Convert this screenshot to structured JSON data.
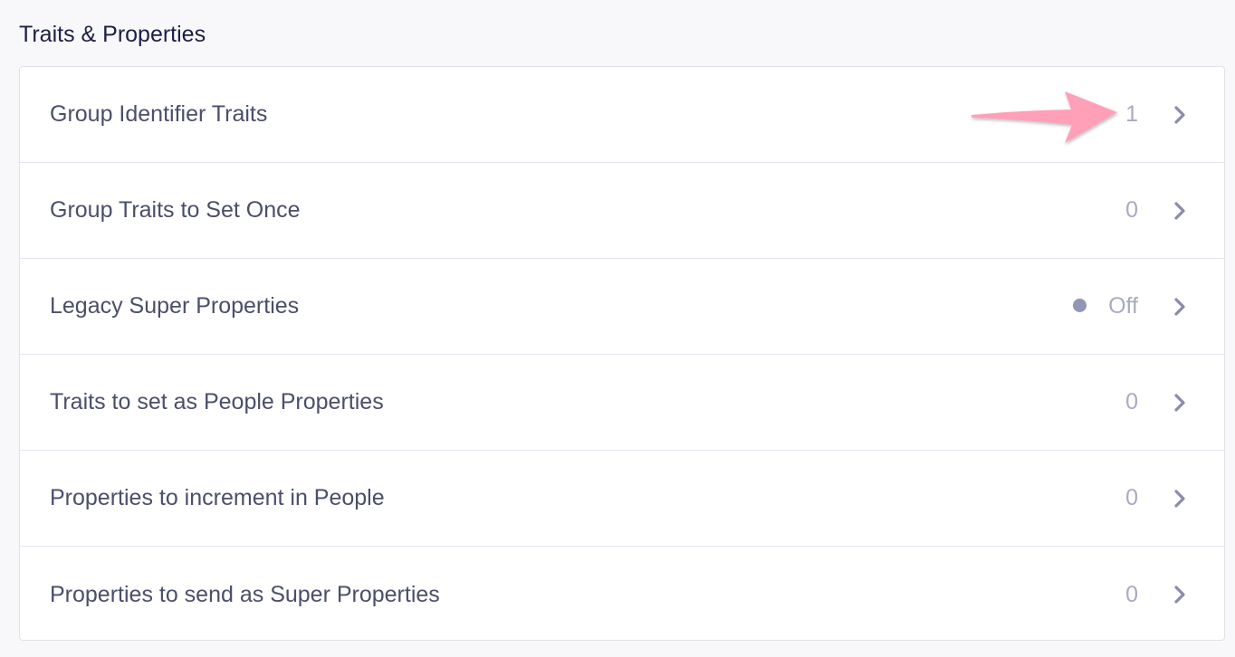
{
  "section_title": "Traits & Properties",
  "rows": [
    {
      "label": "Group Identifier Traits",
      "value": "1"
    },
    {
      "label": "Group Traits to Set Once",
      "value": "0"
    },
    {
      "label": "Legacy Super Properties",
      "value": "Off",
      "status_dot": true
    },
    {
      "label": "Traits to set as People Properties",
      "value": "0"
    },
    {
      "label": "Properties to increment in People",
      "value": "0"
    },
    {
      "label": "Properties to send as Super Properties",
      "value": "0"
    }
  ],
  "colors": {
    "annotation_arrow": "#ffa0b8",
    "chevron": "#8a8cab",
    "status_dot": "#9295b5"
  },
  "icons": {
    "row_chevron": "chevron-right-icon",
    "annotation": "pink-arrow-annotation"
  }
}
